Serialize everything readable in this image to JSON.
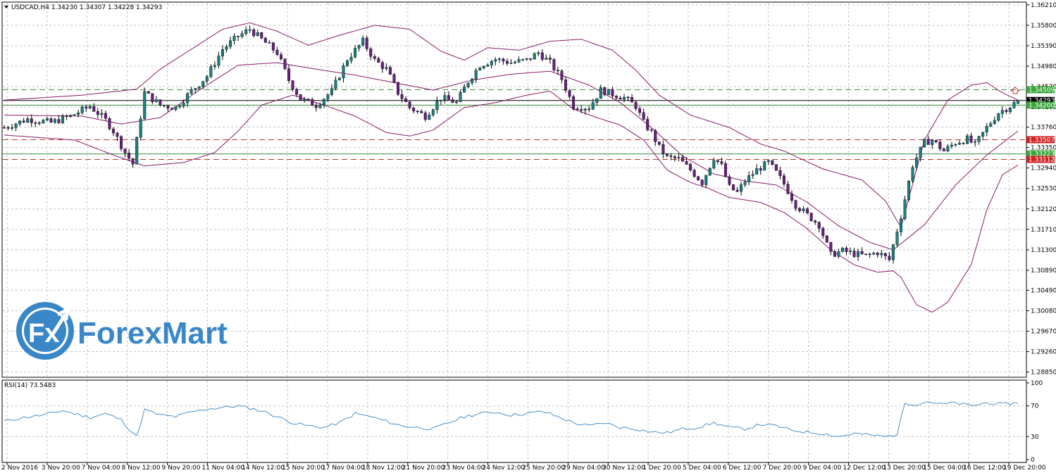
{
  "chart_data": [
    {
      "type": "candlestick",
      "header": "USDCAD,H4  1.34230 1.34307 1.34228 1.34293",
      "instrument": "USDCAD",
      "timeframe": "H4",
      "ohlc_last": [
        1.3423,
        1.34307,
        1.34228,
        1.34293
      ],
      "ylim": [
        1.2876,
        1.3625
      ],
      "y_ticks": [
        "1.36210",
        "1.35800",
        "1.35390",
        "1.34980",
        "1.34570",
        "1.34160",
        "1.33760",
        "1.33350",
        "1.32940",
        "1.32530",
        "1.32120",
        "1.31710",
        "1.31300",
        "1.30890",
        "1.30490",
        "1.30080",
        "1.29670",
        "1.29260",
        "1.28850"
      ],
      "x_ticks": [
        "2 Nov 2016",
        "3 Nov 20:00",
        "7 Nov 04:00",
        "8 Nov 12:00",
        "9 Nov 20:00",
        "11 Nov 04:00",
        "14 Nov 12:00",
        "15 Nov 20:00",
        "17 Nov 04:00",
        "18 Nov 12:00",
        "21 Nov 20:00",
        "23 Nov 04:00",
        "24 Nov 12:00",
        "25 Nov 20:00",
        "29 Nov 04:00",
        "30 Nov 12:00",
        "1 Dec 20:00",
        "5 Dec 04:00",
        "6 Dec 12:00",
        "7 Dec 20:00",
        "9 Dec 04:00",
        "12 Dec 12:00",
        "13 Dec 20:00",
        "15 Dec 04:00",
        "16 Dec 12:00",
        "19 Dec 20:00"
      ],
      "close_path": [
        [
          0,
          1.3375
        ],
        [
          6,
          1.3392
        ],
        [
          12,
          1.3385
        ],
        [
          17,
          1.3398
        ],
        [
          22,
          1.3418
        ],
        [
          26,
          1.339
        ],
        [
          28,
          1.3368
        ],
        [
          31,
          1.3325
        ],
        [
          33,
          1.3302
        ],
        [
          36,
          1.3445
        ],
        [
          40,
          1.342
        ],
        [
          44,
          1.3415
        ],
        [
          48,
          1.3448
        ],
        [
          52,
          1.3478
        ],
        [
          56,
          1.3532
        ],
        [
          60,
          1.3558
        ],
        [
          63,
          1.3572
        ],
        [
          67,
          1.3545
        ],
        [
          70,
          1.3525
        ],
        [
          73,
          1.347
        ],
        [
          76,
          1.3432
        ],
        [
          80,
          1.342
        ],
        [
          84,
          1.3448
        ],
        [
          88,
          1.3512
        ],
        [
          92,
          1.3548
        ],
        [
          95,
          1.351
        ],
        [
          98,
          1.3492
        ],
        [
          101,
          1.3445
        ],
        [
          104,
          1.3415
        ],
        [
          108,
          1.3398
        ],
        [
          112,
          1.3435
        ],
        [
          116,
          1.3425
        ],
        [
          119,
          1.3468
        ],
        [
          122,
          1.35
        ],
        [
          126,
          1.3512
        ],
        [
          130,
          1.3505
        ],
        [
          134,
          1.351
        ],
        [
          137,
          1.3525
        ],
        [
          140,
          1.3505
        ],
        [
          143,
          1.3472
        ],
        [
          146,
          1.3418
        ],
        [
          150,
          1.3415
        ],
        [
          153,
          1.345
        ],
        [
          156,
          1.3442
        ],
        [
          159,
          1.3435
        ],
        [
          162,
          1.3418
        ],
        [
          164,
          1.3385
        ],
        [
          166,
          1.3365
        ],
        [
          168,
          1.3335
        ],
        [
          170,
          1.3315
        ],
        [
          173,
          1.3312
        ],
        [
          176,
          1.329
        ],
        [
          179,
          1.3265
        ],
        [
          182,
          1.3315
        ],
        [
          184,
          1.3298
        ],
        [
          186,
          1.3255
        ],
        [
          188,
          1.3245
        ],
        [
          190,
          1.3268
        ],
        [
          193,
          1.329
        ],
        [
          196,
          1.3305
        ],
        [
          198,
          1.3285
        ],
        [
          200,
          1.3262
        ],
        [
          203,
          1.322
        ],
        [
          206,
          1.32
        ],
        [
          209,
          1.318
        ],
        [
          212,
          1.312
        ],
        [
          215,
          1.3128
        ],
        [
          218,
          1.3122
        ],
        [
          221,
          1.3118
        ],
        [
          224,
          1.3125
        ],
        [
          227,
          1.311
        ],
        [
          230,
          1.3198
        ],
        [
          233,
          1.33
        ],
        [
          236,
          1.3345
        ],
        [
          238,
          1.335
        ],
        [
          241,
          1.3328
        ],
        [
          244,
          1.3345
        ],
        [
          247,
          1.3352
        ],
        [
          249,
          1.334
        ],
        [
          252,
          1.3375
        ],
        [
          255,
          1.3405
        ],
        [
          258,
          1.3418
        ],
        [
          260,
          1.3429
        ]
      ],
      "bollinger": {
        "label": "Bollinger Bands",
        "upper": [
          [
            0,
            1.343
          ],
          [
            20,
            1.344
          ],
          [
            34,
            1.3452
          ],
          [
            40,
            1.3492
          ],
          [
            48,
            1.3532
          ],
          [
            56,
            1.3572
          ],
          [
            63,
            1.3585
          ],
          [
            70,
            1.3568
          ],
          [
            78,
            1.354
          ],
          [
            86,
            1.356
          ],
          [
            95,
            1.358
          ],
          [
            104,
            1.3572
          ],
          [
            112,
            1.3528
          ],
          [
            118,
            1.351
          ],
          [
            124,
            1.3535
          ],
          [
            132,
            1.353
          ],
          [
            140,
            1.3548
          ],
          [
            148,
            1.3552
          ],
          [
            156,
            1.353
          ],
          [
            162,
            1.349
          ],
          [
            168,
            1.344
          ],
          [
            176,
            1.34
          ],
          [
            186,
            1.3375
          ],
          [
            194,
            1.3342
          ],
          [
            200,
            1.3328
          ],
          [
            210,
            1.3292
          ],
          [
            220,
            1.327
          ],
          [
            226,
            1.3228
          ],
          [
            230,
            1.3175
          ],
          [
            236,
            1.335
          ],
          [
            242,
            1.343
          ],
          [
            248,
            1.346
          ],
          [
            252,
            1.3465
          ],
          [
            256,
            1.3445
          ],
          [
            260,
            1.343
          ]
        ],
        "middle": [
          [
            0,
            1.34
          ],
          [
            20,
            1.3398
          ],
          [
            30,
            1.3382
          ],
          [
            40,
            1.3395
          ],
          [
            50,
            1.345
          ],
          [
            60,
            1.35
          ],
          [
            70,
            1.3505
          ],
          [
            80,
            1.3492
          ],
          [
            90,
            1.348
          ],
          [
            100,
            1.3465
          ],
          [
            110,
            1.345
          ],
          [
            120,
            1.347
          ],
          [
            130,
            1.3482
          ],
          [
            140,
            1.3488
          ],
          [
            150,
            1.346
          ],
          [
            158,
            1.3425
          ],
          [
            166,
            1.3375
          ],
          [
            174,
            1.3318
          ],
          [
            182,
            1.3282
          ],
          [
            190,
            1.3268
          ],
          [
            198,
            1.326
          ],
          [
            206,
            1.3225
          ],
          [
            214,
            1.3178
          ],
          [
            222,
            1.3145
          ],
          [
            228,
            1.313
          ],
          [
            236,
            1.318
          ],
          [
            244,
            1.326
          ],
          [
            252,
            1.332
          ],
          [
            260,
            1.3368
          ]
        ],
        "lower": [
          [
            0,
            1.336
          ],
          [
            18,
            1.335
          ],
          [
            28,
            1.332
          ],
          [
            36,
            1.3298
          ],
          [
            46,
            1.3305
          ],
          [
            54,
            1.3325
          ],
          [
            60,
            1.3368
          ],
          [
            66,
            1.342
          ],
          [
            74,
            1.344
          ],
          [
            82,
            1.342
          ],
          [
            90,
            1.3398
          ],
          [
            98,
            1.3365
          ],
          [
            104,
            1.3358
          ],
          [
            110,
            1.337
          ],
          [
            118,
            1.3415
          ],
          [
            126,
            1.3425
          ],
          [
            134,
            1.344
          ],
          [
            140,
            1.3448
          ],
          [
            146,
            1.3412
          ],
          [
            152,
            1.3395
          ],
          [
            158,
            1.338
          ],
          [
            164,
            1.335
          ],
          [
            170,
            1.329
          ],
          [
            176,
            1.3265
          ],
          [
            180,
            1.3255
          ],
          [
            186,
            1.3235
          ],
          [
            194,
            1.3225
          ],
          [
            200,
            1.3205
          ],
          [
            206,
            1.3172
          ],
          [
            212,
            1.313
          ],
          [
            218,
            1.31
          ],
          [
            224,
            1.3085
          ],
          [
            228,
            1.3088
          ],
          [
            230,
            1.3075
          ],
          [
            234,
            1.302
          ],
          [
            238,
            1.3005
          ],
          [
            242,
            1.3025
          ],
          [
            248,
            1.31
          ],
          [
            252,
            1.321
          ],
          [
            256,
            1.328
          ],
          [
            260,
            1.33
          ]
        ]
      },
      "levels": [
        {
          "price": 1.34509,
          "label": "1.34509",
          "style": "dashed",
          "color": "#3d8c3d",
          "tag_bg": "#3aa33a"
        },
        {
          "price": 1.34293,
          "label": "1.34293",
          "style": "solid",
          "color": "#000000",
          "tag_bg": "#000000"
        },
        {
          "price": 1.342,
          "label": "1.34200",
          "style": "solid",
          "color": "#3d8c3d",
          "tag_bg": "#3aa33a"
        },
        {
          "price": 1.33507,
          "label": "1.33507",
          "style": "dashed",
          "color": "#b83232",
          "tag_bg": "#cc2222"
        },
        {
          "price": 1.33223,
          "label": "1.33223",
          "style": "solid",
          "color": "#3d8c3d",
          "tag_bg": "#3aa33a"
        },
        {
          "price": 1.33112,
          "label": "1.33112",
          "style": "dashed",
          "color": "#b83232",
          "tag_bg": "#cc2222"
        }
      ],
      "candle_count": 261,
      "colors": {
        "bull": "#1a8080",
        "bear": "#6a2080",
        "band": "#8a1a6a",
        "grid": "#c4c4c4",
        "rsi": "#4a90c8"
      }
    },
    {
      "type": "line",
      "header": "RSI(14) 73.5483",
      "name": "RSI(14)",
      "value_label": "73.5483",
      "ylim": [
        0,
        100
      ],
      "y_ticks": [
        "100",
        "70",
        "30",
        "0"
      ],
      "levels": [
        70,
        30
      ],
      "values_path": [
        [
          0,
          50
        ],
        [
          5,
          55
        ],
        [
          10,
          58
        ],
        [
          15,
          64
        ],
        [
          18,
          60
        ],
        [
          22,
          55
        ],
        [
          26,
          60
        ],
        [
          30,
          52
        ],
        [
          32,
          40
        ],
        [
          34,
          30
        ],
        [
          36,
          65
        ],
        [
          40,
          58
        ],
        [
          44,
          56
        ],
        [
          48,
          62
        ],
        [
          52,
          66
        ],
        [
          56,
          68
        ],
        [
          60,
          70
        ],
        [
          64,
          66
        ],
        [
          67,
          62
        ],
        [
          70,
          56
        ],
        [
          74,
          48
        ],
        [
          78,
          44
        ],
        [
          82,
          42
        ],
        [
          86,
          48
        ],
        [
          90,
          60
        ],
        [
          94,
          56
        ],
        [
          98,
          50
        ],
        [
          102,
          44
        ],
        [
          106,
          42
        ],
        [
          110,
          40
        ],
        [
          114,
          48
        ],
        [
          118,
          56
        ],
        [
          122,
          60
        ],
        [
          126,
          62
        ],
        [
          130,
          58
        ],
        [
          134,
          60
        ],
        [
          138,
          63
        ],
        [
          142,
          56
        ],
        [
          146,
          48
        ],
        [
          150,
          44
        ],
        [
          154,
          48
        ],
        [
          158,
          42
        ],
        [
          162,
          40
        ],
        [
          166,
          36
        ],
        [
          170,
          35
        ],
        [
          174,
          40
        ],
        [
          178,
          42
        ],
        [
          182,
          48
        ],
        [
          186,
          42
        ],
        [
          190,
          40
        ],
        [
          194,
          46
        ],
        [
          198,
          44
        ],
        [
          202,
          38
        ],
        [
          206,
          36
        ],
        [
          210,
          34
        ],
        [
          214,
          30
        ],
        [
          218,
          34
        ],
        [
          222,
          32
        ],
        [
          226,
          30
        ],
        [
          229,
          33
        ],
        [
          231,
          74
        ],
        [
          234,
          72
        ],
        [
          237,
          76
        ],
        [
          240,
          72
        ],
        [
          244,
          74
        ],
        [
          248,
          70
        ],
        [
          252,
          74
        ],
        [
          256,
          72
        ],
        [
          260,
          74
        ]
      ]
    }
  ],
  "logo": {
    "text": "ForexMart",
    "badge": "Fx",
    "colors": {
      "blue": "#3a87c8",
      "dark": "#2a6aa8"
    }
  }
}
